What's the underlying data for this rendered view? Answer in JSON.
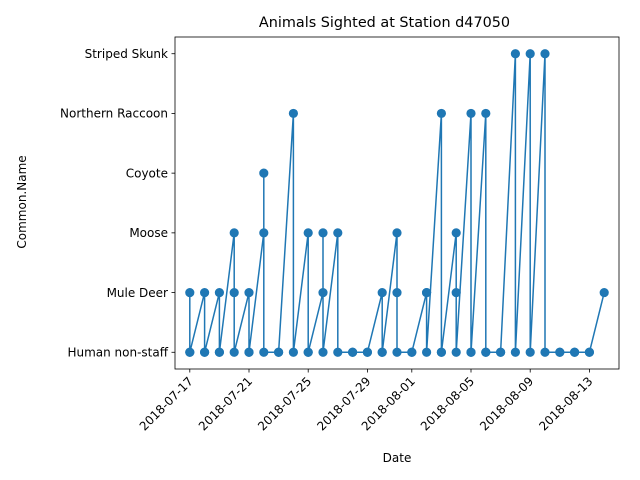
{
  "chart_data": {
    "type": "line",
    "title": "Animals Sighted at Station d47050",
    "xlabel": "Date",
    "ylabel": "Common.Name",
    "categories": [
      "Human non-staff",
      "Mule Deer",
      "Moose",
      "Coyote",
      "Northern Raccoon",
      "Striped Skunk"
    ],
    "x_ticks": [
      "2018-07-17",
      "2018-07-21",
      "2018-07-25",
      "2018-07-29",
      "2018-08-01",
      "2018-08-05",
      "2018-08-09",
      "2018-08-13"
    ],
    "xlim": [
      "2018-07-16",
      "2018-08-15"
    ],
    "grid": false,
    "legend": "none",
    "colors": {
      "series": "#1f77b4"
    },
    "series": [
      {
        "points": [
          [
            "2018-07-17",
            "Mule Deer"
          ],
          [
            "2018-07-17",
            "Human non-staff"
          ],
          [
            "2018-07-17",
            "Human non-staff"
          ],
          [
            "2018-07-18",
            "Mule Deer"
          ],
          [
            "2018-07-18",
            "Human non-staff"
          ],
          [
            "2018-07-18",
            "Human non-staff"
          ],
          [
            "2018-07-19",
            "Mule Deer"
          ],
          [
            "2018-07-19",
            "Human non-staff"
          ],
          [
            "2018-07-19",
            "Human non-staff"
          ],
          [
            "2018-07-20",
            "Moose"
          ],
          [
            "2018-07-20",
            "Mule Deer"
          ],
          [
            "2018-07-20",
            "Human non-staff"
          ],
          [
            "2018-07-21",
            "Mule Deer"
          ],
          [
            "2018-07-21",
            "Human non-staff"
          ],
          [
            "2018-07-21",
            "Human non-staff"
          ],
          [
            "2018-07-22",
            "Moose"
          ],
          [
            "2018-07-22",
            "Coyote"
          ],
          [
            "2018-07-22",
            "Human non-staff"
          ],
          [
            "2018-07-23",
            "Human non-staff"
          ],
          [
            "2018-07-23",
            "Human non-staff"
          ],
          [
            "2018-07-24",
            "Northern Raccoon"
          ],
          [
            "2018-07-24",
            "Human non-staff"
          ],
          [
            "2018-07-25",
            "Moose"
          ],
          [
            "2018-07-25",
            "Human non-staff"
          ],
          [
            "2018-07-25",
            "Human non-staff"
          ],
          [
            "2018-07-26",
            "Mule Deer"
          ],
          [
            "2018-07-26",
            "Moose"
          ],
          [
            "2018-07-26",
            "Human non-staff"
          ],
          [
            "2018-07-27",
            "Moose"
          ],
          [
            "2018-07-27",
            "Human non-staff"
          ],
          [
            "2018-07-28",
            "Human non-staff"
          ],
          [
            "2018-07-28",
            "Human non-staff"
          ],
          [
            "2018-07-29",
            "Human non-staff"
          ],
          [
            "2018-07-29",
            "Human non-staff"
          ],
          [
            "2018-07-30",
            "Mule Deer"
          ],
          [
            "2018-07-30",
            "Human non-staff"
          ],
          [
            "2018-07-30",
            "Human non-staff"
          ],
          [
            "2018-07-31",
            "Moose"
          ],
          [
            "2018-07-31",
            "Mule Deer"
          ],
          [
            "2018-07-31",
            "Human non-staff"
          ],
          [
            "2018-08-01",
            "Human non-staff"
          ],
          [
            "2018-08-01",
            "Human non-staff"
          ],
          [
            "2018-08-02",
            "Mule Deer"
          ],
          [
            "2018-08-02",
            "Mule Deer"
          ],
          [
            "2018-08-02",
            "Human non-staff"
          ],
          [
            "2018-08-03",
            "Northern Raccoon"
          ],
          [
            "2018-08-03",
            "Human non-staff"
          ],
          [
            "2018-08-03",
            "Human non-staff"
          ],
          [
            "2018-08-04",
            "Moose"
          ],
          [
            "2018-08-04",
            "Mule Deer"
          ],
          [
            "2018-08-04",
            "Human non-staff"
          ],
          [
            "2018-08-05",
            "Northern Raccoon"
          ],
          [
            "2018-08-05",
            "Human non-staff"
          ],
          [
            "2018-08-05",
            "Human non-staff"
          ],
          [
            "2018-08-06",
            "Northern Raccoon"
          ],
          [
            "2018-08-06",
            "Human non-staff"
          ],
          [
            "2018-08-06",
            "Human non-staff"
          ],
          [
            "2018-08-07",
            "Human non-staff"
          ],
          [
            "2018-08-07",
            "Human non-staff"
          ],
          [
            "2018-08-08",
            "Striped Skunk"
          ],
          [
            "2018-08-08",
            "Human non-staff"
          ],
          [
            "2018-08-09",
            "Striped Skunk"
          ],
          [
            "2018-08-09",
            "Human non-staff"
          ],
          [
            "2018-08-10",
            "Striped Skunk"
          ],
          [
            "2018-08-10",
            "Human non-staff"
          ],
          [
            "2018-08-11",
            "Human non-staff"
          ],
          [
            "2018-08-11",
            "Human non-staff"
          ],
          [
            "2018-08-12",
            "Human non-staff"
          ],
          [
            "2018-08-12",
            "Human non-staff"
          ],
          [
            "2018-08-13",
            "Human non-staff"
          ],
          [
            "2018-08-13",
            "Human non-staff"
          ],
          [
            "2018-08-14",
            "Mule Deer"
          ]
        ]
      }
    ]
  }
}
